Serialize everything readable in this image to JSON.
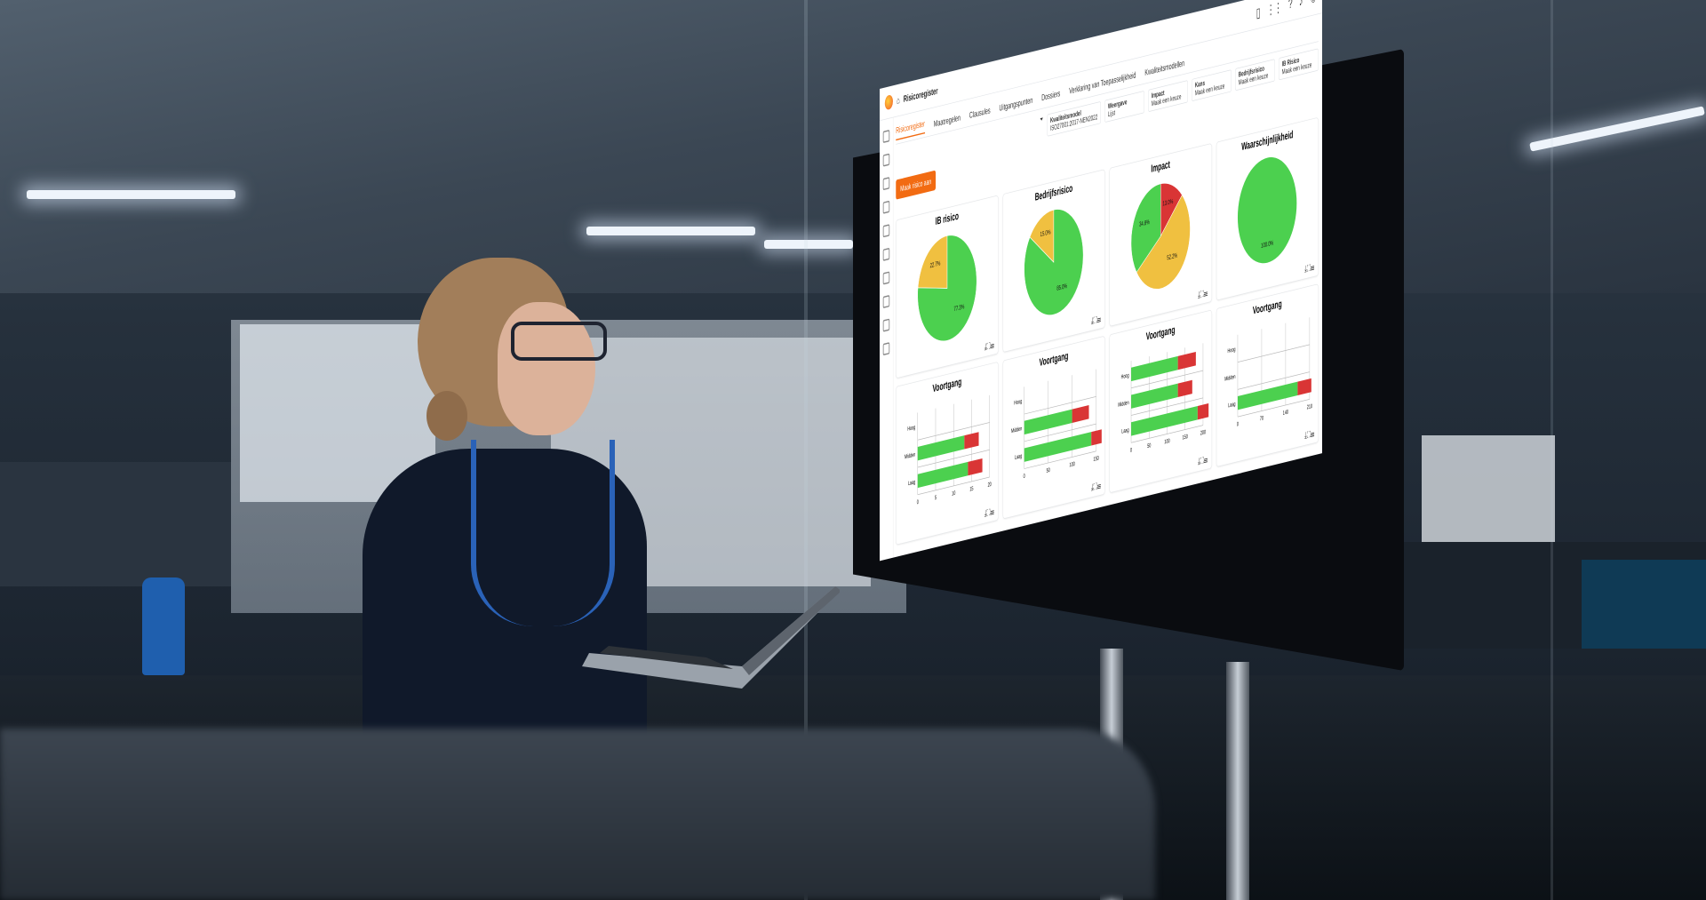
{
  "screen": {
    "breadcrumb": "Risicoregister",
    "tabs": [
      "Risicoregister",
      "Maatregelen",
      "Clausules",
      "Uitgangspunten",
      "Dossiers",
      "Verklaring van Toepasselijkheid",
      "Kwaliteitsmodellen"
    ],
    "filters": [
      {
        "label": "Kwaliteitsmodel",
        "value": "ISO27001:2017-NEN2022"
      },
      {
        "label": "Weergave",
        "value": "Lijst"
      },
      {
        "label": "Impact",
        "value": "Maak een keuze"
      },
      {
        "label": "Kans",
        "value": "Maak een keuze"
      },
      {
        "label": "Bedrijfsrisico",
        "value": "Maak een keuze"
      },
      {
        "label": "IB Risico",
        "value": "Maak een keuze"
      }
    ],
    "add_button": "Maak risico aan",
    "tool_icons": "⤓⛶☰",
    "colors": {
      "green": "#4cd04f",
      "yellow": "#f0c040",
      "red": "#d93535",
      "accent": "#f26b12"
    }
  },
  "chart_data": [
    {
      "type": "pie",
      "title": "IB risico",
      "values": [
        {
          "name": "",
          "value": 77.3,
          "label": "77.3%",
          "color": "#4cd04f"
        },
        {
          "name": "",
          "value": 22.7,
          "label": "22.7%",
          "color": "#f0c040"
        }
      ]
    },
    {
      "type": "pie",
      "title": "Bedrijfsrisico",
      "values": [
        {
          "name": "",
          "value": 85.0,
          "label": "85.0%",
          "color": "#4cd04f"
        },
        {
          "name": "",
          "value": 15.0,
          "label": "15.0%",
          "color": "#f0c040"
        }
      ]
    },
    {
      "type": "pie",
      "title": "Impact",
      "values": [
        {
          "name": "",
          "value": 13.0,
          "label": "13.0%",
          "color": "#d93535"
        },
        {
          "name": "",
          "value": 52.2,
          "label": "52.2%",
          "color": "#f0c040"
        },
        {
          "name": "",
          "value": 34.8,
          "label": "34.8%",
          "color": "#4cd04f"
        }
      ]
    },
    {
      "type": "pie",
      "title": "Waarschijnlijkheid",
      "values": [
        {
          "name": "",
          "value": 100.0,
          "label": "100.0%",
          "color": "#4cd04f"
        }
      ]
    },
    {
      "type": "bar",
      "title": "Voortgang",
      "categories": [
        "Hoog",
        "Midden",
        "Laag"
      ],
      "series": [
        {
          "values": [
            0,
            13,
            14
          ],
          "color": "#4cd04f"
        },
        {
          "values": [
            0,
            4,
            4
          ],
          "color": "#d93535"
        }
      ],
      "ticks": [
        "0",
        "5",
        "10",
        "15",
        "20"
      ]
    },
    {
      "type": "bar",
      "title": "Voortgang",
      "categories": [
        "Hoog",
        "Midden",
        "Laag"
      ],
      "series": [
        {
          "values": [
            0,
            100,
            140
          ],
          "color": "#4cd04f"
        },
        {
          "values": [
            0,
            35,
            40
          ],
          "color": "#d93535"
        }
      ],
      "ticks": [
        "0",
        "50",
        "100",
        "150"
      ]
    },
    {
      "type": "bar",
      "title": "Voortgang",
      "categories": [
        "Hoog",
        "Midden",
        "Laag"
      ],
      "series": [
        {
          "values": [
            130,
            130,
            185
          ],
          "color": "#4cd04f"
        },
        {
          "values": [
            50,
            40,
            40
          ],
          "color": "#d93535"
        }
      ],
      "ticks": [
        "0",
        "50",
        "100",
        "150",
        "200"
      ]
    },
    {
      "type": "bar",
      "title": "Voortgang",
      "categories": [
        "Hoog",
        "Midden",
        "Laag"
      ],
      "series": [
        {
          "values": [
            0,
            0,
            175
          ],
          "color": "#4cd04f"
        },
        {
          "values": [
            0,
            0,
            40
          ],
          "color": "#d93535"
        }
      ],
      "ticks": [
        "0",
        "70",
        "140",
        "210"
      ]
    }
  ]
}
